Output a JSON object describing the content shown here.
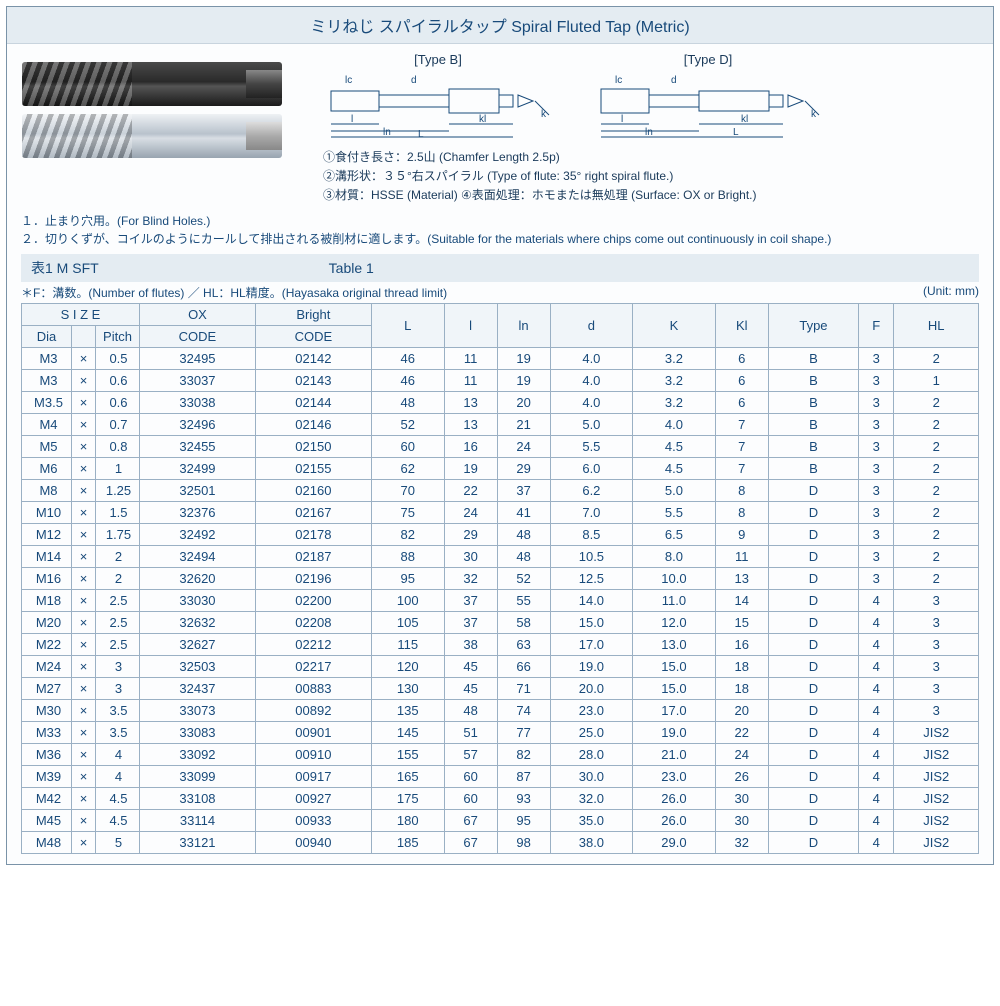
{
  "title": "ミリねじ  スパイラルタップ  Spiral Fluted Tap (Metric)",
  "diagrams": {
    "typeB": {
      "label": "[Type B]"
    },
    "typeD": {
      "label": "[Type D]"
    },
    "dims": {
      "lc": "lc",
      "d": "d",
      "k": "k",
      "l": "l",
      "ln": "ln",
      "L": "L",
      "kl": "kl"
    }
  },
  "specNotes": [
    "①食付き長さ：2.5山 (Chamfer Length 2.5p)",
    "②溝形状：３５°右スパイラル  (Type of flute: 35° right spiral flute.)",
    "③材質：HSSE (Material)   ④表面処理：ホモまたは無処理 (Surface: OX or Bright.)"
  ],
  "usageNotes": [
    "１．止まり穴用。(For Blind Holes.)",
    "２．切りくずが、コイルのようにカールして排出される被削材に適します。(Suitable for the materials where chips come out continuously in coil shape.)"
  ],
  "tableTitle": {
    "left": "表1   M SFT",
    "right": "Table   1"
  },
  "tableMeta": {
    "left": "＊F：溝数。(Number of flutes) ／ HL：HL精度。(Hayasaka original thread limit)",
    "right": "(Unit: mm)"
  },
  "columns": {
    "sizeHeader": "S I Z E",
    "dia": "Dia",
    "pitch": "Pitch",
    "ox": "OX",
    "bright": "Bright",
    "code": "CODE",
    "L": "L",
    "l": "l",
    "ln": "ln",
    "d": "d",
    "K": "K",
    "Kl": "Kl",
    "Type": "Type",
    "F": "F",
    "HL": "HL"
  },
  "rows": [
    {
      "dia": "M3",
      "x": "×",
      "pitch": "0.5",
      "ox": "32495",
      "bright": "02142",
      "L": "46",
      "l": "11",
      "ln": "19",
      "d": "4.0",
      "K": "3.2",
      "Kl": "6",
      "Type": "B",
      "F": "3",
      "HL": "2"
    },
    {
      "dia": "M3",
      "x": "×",
      "pitch": "0.6",
      "ox": "33037",
      "bright": "02143",
      "L": "46",
      "l": "11",
      "ln": "19",
      "d": "4.0",
      "K": "3.2",
      "Kl": "6",
      "Type": "B",
      "F": "3",
      "HL": "1"
    },
    {
      "dia": "M3.5",
      "x": "×",
      "pitch": "0.6",
      "ox": "33038",
      "bright": "02144",
      "L": "48",
      "l": "13",
      "ln": "20",
      "d": "4.0",
      "K": "3.2",
      "Kl": "6",
      "Type": "B",
      "F": "3",
      "HL": "2"
    },
    {
      "dia": "M4",
      "x": "×",
      "pitch": "0.7",
      "ox": "32496",
      "bright": "02146",
      "L": "52",
      "l": "13",
      "ln": "21",
      "d": "5.0",
      "K": "4.0",
      "Kl": "7",
      "Type": "B",
      "F": "3",
      "HL": "2"
    },
    {
      "dia": "M5",
      "x": "×",
      "pitch": "0.8",
      "ox": "32455",
      "bright": "02150",
      "L": "60",
      "l": "16",
      "ln": "24",
      "d": "5.5",
      "K": "4.5",
      "Kl": "7",
      "Type": "B",
      "F": "3",
      "HL": "2"
    },
    {
      "dia": "M6",
      "x": "×",
      "pitch": "1",
      "ox": "32499",
      "bright": "02155",
      "L": "62",
      "l": "19",
      "ln": "29",
      "d": "6.0",
      "K": "4.5",
      "Kl": "7",
      "Type": "B",
      "F": "3",
      "HL": "2"
    },
    {
      "dia": "M8",
      "x": "×",
      "pitch": "1.25",
      "ox": "32501",
      "bright": "02160",
      "L": "70",
      "l": "22",
      "ln": "37",
      "d": "6.2",
      "K": "5.0",
      "Kl": "8",
      "Type": "D",
      "F": "3",
      "HL": "2"
    },
    {
      "dia": "M10",
      "x": "×",
      "pitch": "1.5",
      "ox": "32376",
      "bright": "02167",
      "L": "75",
      "l": "24",
      "ln": "41",
      "d": "7.0",
      "K": "5.5",
      "Kl": "8",
      "Type": "D",
      "F": "3",
      "HL": "2"
    },
    {
      "dia": "M12",
      "x": "×",
      "pitch": "1.75",
      "ox": "32492",
      "bright": "02178",
      "L": "82",
      "l": "29",
      "ln": "48",
      "d": "8.5",
      "K": "6.5",
      "Kl": "9",
      "Type": "D",
      "F": "3",
      "HL": "2"
    },
    {
      "dia": "M14",
      "x": "×",
      "pitch": "2",
      "ox": "32494",
      "bright": "02187",
      "L": "88",
      "l": "30",
      "ln": "48",
      "d": "10.5",
      "K": "8.0",
      "Kl": "11",
      "Type": "D",
      "F": "3",
      "HL": "2"
    },
    {
      "dia": "M16",
      "x": "×",
      "pitch": "2",
      "ox": "32620",
      "bright": "02196",
      "L": "95",
      "l": "32",
      "ln": "52",
      "d": "12.5",
      "K": "10.0",
      "Kl": "13",
      "Type": "D",
      "F": "3",
      "HL": "2"
    },
    {
      "dia": "M18",
      "x": "×",
      "pitch": "2.5",
      "ox": "33030",
      "bright": "02200",
      "L": "100",
      "l": "37",
      "ln": "55",
      "d": "14.0",
      "K": "11.0",
      "Kl": "14",
      "Type": "D",
      "F": "4",
      "HL": "3"
    },
    {
      "dia": "M20",
      "x": "×",
      "pitch": "2.5",
      "ox": "32632",
      "bright": "02208",
      "L": "105",
      "l": "37",
      "ln": "58",
      "d": "15.0",
      "K": "12.0",
      "Kl": "15",
      "Type": "D",
      "F": "4",
      "HL": "3"
    },
    {
      "dia": "M22",
      "x": "×",
      "pitch": "2.5",
      "ox": "32627",
      "bright": "02212",
      "L": "115",
      "l": "38",
      "ln": "63",
      "d": "17.0",
      "K": "13.0",
      "Kl": "16",
      "Type": "D",
      "F": "4",
      "HL": "3"
    },
    {
      "dia": "M24",
      "x": "×",
      "pitch": "3",
      "ox": "32503",
      "bright": "02217",
      "L": "120",
      "l": "45",
      "ln": "66",
      "d": "19.0",
      "K": "15.0",
      "Kl": "18",
      "Type": "D",
      "F": "4",
      "HL": "3"
    },
    {
      "dia": "M27",
      "x": "×",
      "pitch": "3",
      "ox": "32437",
      "bright": "00883",
      "L": "130",
      "l": "45",
      "ln": "71",
      "d": "20.0",
      "K": "15.0",
      "Kl": "18",
      "Type": "D",
      "F": "4",
      "HL": "3"
    },
    {
      "dia": "M30",
      "x": "×",
      "pitch": "3.5",
      "ox": "33073",
      "bright": "00892",
      "L": "135",
      "l": "48",
      "ln": "74",
      "d": "23.0",
      "K": "17.0",
      "Kl": "20",
      "Type": "D",
      "F": "4",
      "HL": "3"
    },
    {
      "dia": "M33",
      "x": "×",
      "pitch": "3.5",
      "ox": "33083",
      "bright": "00901",
      "L": "145",
      "l": "51",
      "ln": "77",
      "d": "25.0",
      "K": "19.0",
      "Kl": "22",
      "Type": "D",
      "F": "4",
      "HL": "JIS2"
    },
    {
      "dia": "M36",
      "x": "×",
      "pitch": "4",
      "ox": "33092",
      "bright": "00910",
      "L": "155",
      "l": "57",
      "ln": "82",
      "d": "28.0",
      "K": "21.0",
      "Kl": "24",
      "Type": "D",
      "F": "4",
      "HL": "JIS2"
    },
    {
      "dia": "M39",
      "x": "×",
      "pitch": "4",
      "ox": "33099",
      "bright": "00917",
      "L": "165",
      "l": "60",
      "ln": "87",
      "d": "30.0",
      "K": "23.0",
      "Kl": "26",
      "Type": "D",
      "F": "4",
      "HL": "JIS2"
    },
    {
      "dia": "M42",
      "x": "×",
      "pitch": "4.5",
      "ox": "33108",
      "bright": "00927",
      "L": "175",
      "l": "60",
      "ln": "93",
      "d": "32.0",
      "K": "26.0",
      "Kl": "30",
      "Type": "D",
      "F": "4",
      "HL": "JIS2"
    },
    {
      "dia": "M45",
      "x": "×",
      "pitch": "4.5",
      "ox": "33114",
      "bright": "00933",
      "L": "180",
      "l": "67",
      "ln": "95",
      "d": "35.0",
      "K": "26.0",
      "Kl": "30",
      "Type": "D",
      "F": "4",
      "HL": "JIS2"
    },
    {
      "dia": "M48",
      "x": "×",
      "pitch": "5",
      "ox": "33121",
      "bright": "00940",
      "L": "185",
      "l": "67",
      "ln": "98",
      "d": "38.0",
      "K": "29.0",
      "Kl": "32",
      "Type": "D",
      "F": "4",
      "HL": "JIS2"
    }
  ],
  "style": {
    "accent": "#184a7a",
    "border": "#7a93a8",
    "cellBorder": "#9ab0c4",
    "headerBg": "#e4ecf2"
  }
}
